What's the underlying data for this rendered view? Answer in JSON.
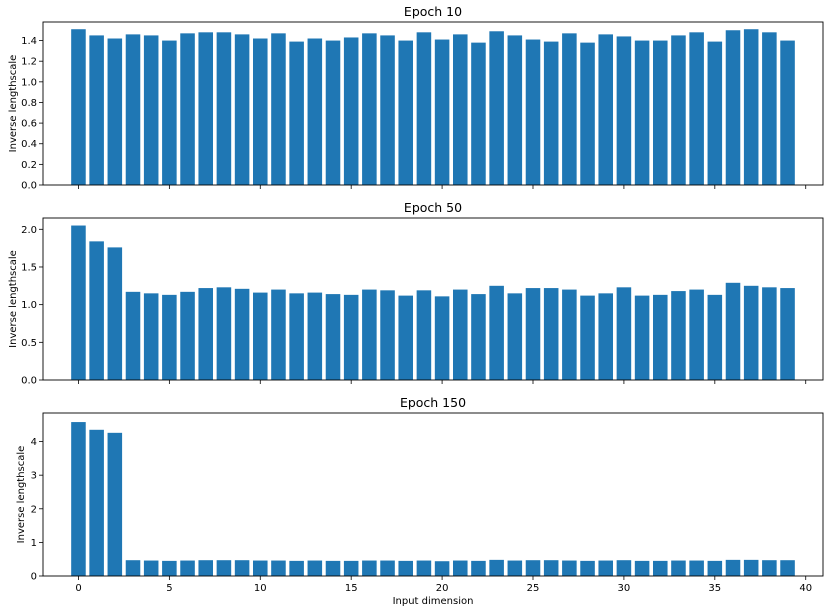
{
  "chart_data": [
    {
      "type": "bar",
      "title": "Epoch 10",
      "xlabel": "",
      "ylabel": "Inverse lengthscale",
      "x": [
        0,
        1,
        2,
        3,
        4,
        5,
        6,
        7,
        8,
        9,
        10,
        11,
        12,
        13,
        14,
        15,
        16,
        17,
        18,
        19,
        20,
        21,
        22,
        23,
        24,
        25,
        26,
        27,
        28,
        29,
        30,
        31,
        32,
        33,
        34,
        35,
        36,
        37,
        38,
        39
      ],
      "values": [
        1.51,
        1.45,
        1.42,
        1.46,
        1.45,
        1.4,
        1.47,
        1.48,
        1.48,
        1.46,
        1.42,
        1.47,
        1.39,
        1.42,
        1.4,
        1.43,
        1.47,
        1.45,
        1.4,
        1.48,
        1.41,
        1.46,
        1.38,
        1.49,
        1.45,
        1.41,
        1.39,
        1.47,
        1.38,
        1.46,
        1.44,
        1.4,
        1.4,
        1.45,
        1.48,
        1.39,
        1.5,
        1.51,
        1.48,
        1.4
      ],
      "xlim": [
        -1.95,
        40.95
      ],
      "ylim": [
        0,
        1.58
      ],
      "yticks": [
        0.0,
        0.2,
        0.4,
        0.6,
        0.8,
        1.0,
        1.2,
        1.4
      ],
      "ytick_labels": [
        "0.0",
        "0.2",
        "0.4",
        "0.6",
        "0.8",
        "1.0",
        "1.2",
        "1.4"
      ],
      "xticks": [
        0,
        5,
        10,
        15,
        20,
        25,
        30,
        35,
        40
      ],
      "xtick_labels": [],
      "grid": false,
      "color": "#1f77b4"
    },
    {
      "type": "bar",
      "title": "Epoch 50",
      "xlabel": "",
      "ylabel": "Inverse lengthscale",
      "x": [
        0,
        1,
        2,
        3,
        4,
        5,
        6,
        7,
        8,
        9,
        10,
        11,
        12,
        13,
        14,
        15,
        16,
        17,
        18,
        19,
        20,
        21,
        22,
        23,
        24,
        25,
        26,
        27,
        28,
        29,
        30,
        31,
        32,
        33,
        34,
        35,
        36,
        37,
        38,
        39
      ],
      "values": [
        2.05,
        1.84,
        1.76,
        1.17,
        1.15,
        1.13,
        1.17,
        1.22,
        1.23,
        1.21,
        1.16,
        1.2,
        1.15,
        1.16,
        1.14,
        1.13,
        1.2,
        1.19,
        1.12,
        1.19,
        1.11,
        1.2,
        1.14,
        1.25,
        1.15,
        1.22,
        1.22,
        1.2,
        1.12,
        1.15,
        1.23,
        1.12,
        1.13,
        1.18,
        1.2,
        1.13,
        1.29,
        1.25,
        1.23,
        1.22
      ],
      "xlim": [
        -1.95,
        40.95
      ],
      "ylim": [
        0,
        2.15
      ],
      "yticks": [
        0.0,
        0.5,
        1.0,
        1.5,
        2.0
      ],
      "ytick_labels": [
        "0.0",
        "0.5",
        "1.0",
        "1.5",
        "2.0"
      ],
      "xticks": [
        0,
        5,
        10,
        15,
        20,
        25,
        30,
        35,
        40
      ],
      "xtick_labels": [],
      "grid": false,
      "color": "#1f77b4"
    },
    {
      "type": "bar",
      "title": "Epoch 150",
      "xlabel": "Input dimension",
      "ylabel": "Inverse lengthscale",
      "x": [
        0,
        1,
        2,
        3,
        4,
        5,
        6,
        7,
        8,
        9,
        10,
        11,
        12,
        13,
        14,
        15,
        16,
        17,
        18,
        19,
        20,
        21,
        22,
        23,
        24,
        25,
        26,
        27,
        28,
        29,
        30,
        31,
        32,
        33,
        34,
        35,
        36,
        37,
        38,
        39
      ],
      "values": [
        4.58,
        4.35,
        4.26,
        0.47,
        0.46,
        0.45,
        0.46,
        0.47,
        0.47,
        0.47,
        0.46,
        0.46,
        0.45,
        0.46,
        0.45,
        0.45,
        0.46,
        0.46,
        0.45,
        0.46,
        0.44,
        0.46,
        0.45,
        0.48,
        0.46,
        0.47,
        0.47,
        0.46,
        0.45,
        0.46,
        0.47,
        0.45,
        0.45,
        0.46,
        0.46,
        0.45,
        0.48,
        0.48,
        0.47,
        0.47
      ],
      "xlim": [
        -1.95,
        40.95
      ],
      "ylim": [
        0,
        4.85
      ],
      "yticks": [
        0,
        1,
        2,
        3,
        4
      ],
      "ytick_labels": [
        "0",
        "1",
        "2",
        "3",
        "4"
      ],
      "xticks": [
        0,
        5,
        10,
        15,
        20,
        25,
        30,
        35,
        40
      ],
      "xtick_labels": [
        "0",
        "5",
        "10",
        "15",
        "20",
        "25",
        "30",
        "35",
        "40"
      ],
      "grid": false,
      "color": "#1f77b4"
    }
  ]
}
